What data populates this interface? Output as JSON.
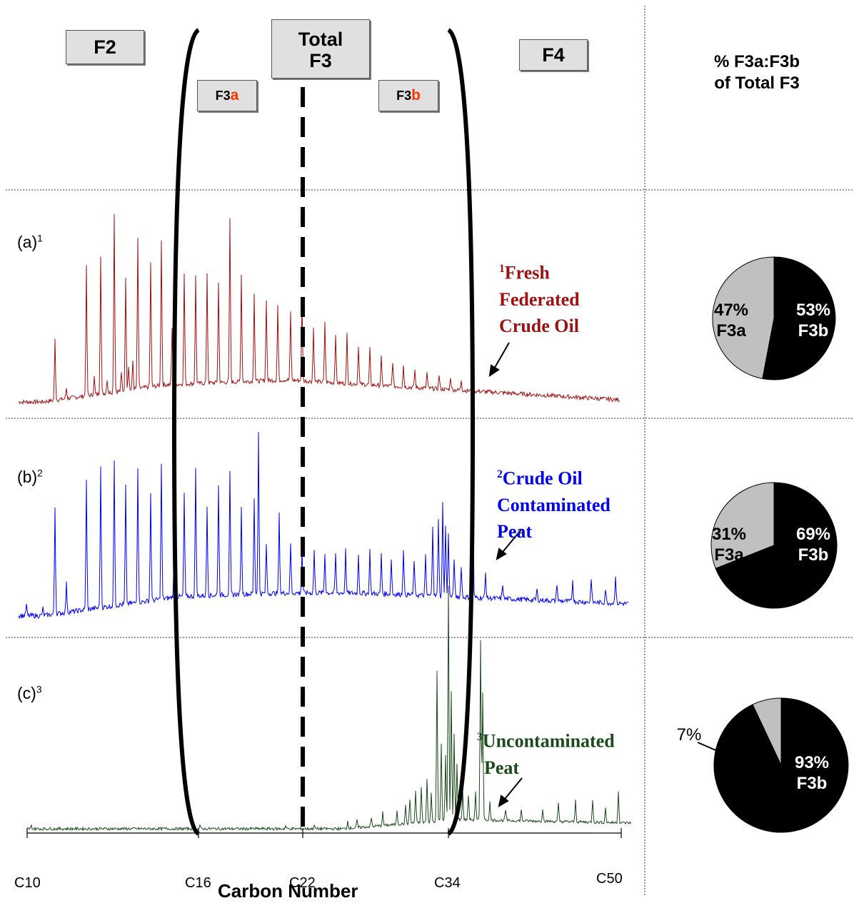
{
  "header": {
    "f2": "F2",
    "total_f3_line1": "Total",
    "total_f3_line2": "F3",
    "f4": "F4",
    "f3a_prefix": "F3",
    "f3a_suffix": "a",
    "f3b_prefix": "F3",
    "f3b_suffix": "b",
    "pie_title_line1": "% F3a:F3b",
    "pie_title_line2": "of Total F3"
  },
  "colors": {
    "fresh_oil": "#a01010",
    "contaminated_peat": "#0000ee",
    "uncontaminated_peat": "#1a4a1a",
    "f3a_pie": "#c0c0c0",
    "f3b_pie": "#000000",
    "suffix_red": "#ff3300"
  },
  "panels": [
    {
      "letter": "(a)",
      "sup": "1",
      "note_sup": "1",
      "note_lines": [
        "Fresh",
        "Federated",
        "Crude Oil"
      ]
    },
    {
      "letter": "(b)",
      "sup": "2",
      "note_sup": "2",
      "note_lines": [
        "Crude Oil",
        "Contaminated",
        "Peat"
      ]
    },
    {
      "letter": "(c)",
      "sup": "3",
      "note_sup": "3",
      "note_lines": [
        "Uncontaminated",
        "Peat"
      ]
    }
  ],
  "xaxis": {
    "label": "Carbon Number"
  },
  "chart_data": {
    "type": "line",
    "xlabel": "Carbon Number",
    "x_ticks": [
      "C10",
      "C16",
      "C22",
      "C34",
      "C50"
    ],
    "regions": [
      "F2",
      "F3a",
      "F3b",
      "F4"
    ],
    "series": [
      {
        "name": "Fresh Federated Crude Oil",
        "profile": "decaying",
        "x_range": [
          10,
          50
        ]
      },
      {
        "name": "Crude Oil Contaminated Peat",
        "profile": "mixed",
        "x_range": [
          10,
          50
        ]
      },
      {
        "name": "Uncontaminated Peat",
        "profile": "late",
        "x_range": [
          10,
          50
        ]
      }
    ],
    "pies": [
      {
        "slices": [
          {
            "name": "F3a",
            "value": 47,
            "label": "47%",
            "sub": "F3a"
          },
          {
            "name": "F3b",
            "value": 53,
            "label": "53%",
            "sub": "F3b"
          }
        ]
      },
      {
        "slices": [
          {
            "name": "F3a",
            "value": 31,
            "label": "31%",
            "sub": "F3a"
          },
          {
            "name": "F3b",
            "value": 69,
            "label": "69%",
            "sub": "F3b"
          }
        ]
      },
      {
        "slices": [
          {
            "name": "F3a",
            "value": 7,
            "label": "7%",
            "sub": ""
          },
          {
            "name": "F3b",
            "value": 93,
            "label": "93%",
            "sub": "F3b"
          }
        ]
      }
    ]
  }
}
